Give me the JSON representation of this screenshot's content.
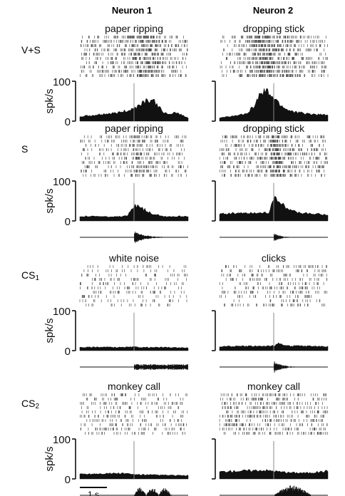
{
  "columns": [
    "Neuron 1",
    "Neuron 2"
  ],
  "conditions": [
    {
      "label": "V+S",
      "label_main": "V+S",
      "label_sub": ""
    },
    {
      "label": "S",
      "label_main": "S",
      "label_sub": ""
    },
    {
      "label": "CS1",
      "label_main": "CS",
      "label_sub": "1"
    },
    {
      "label": "CS2",
      "label_main": "CS",
      "label_sub": "2"
    }
  ],
  "scale_bar_label": "1 s",
  "colors": {
    "ink": "#111111",
    "raster": "#555555",
    "stim_line": "#888888"
  },
  "chart_data": {
    "type": "area",
    "ylabel": "spk/s",
    "ylim": [
      0,
      100
    ],
    "y_ticks": [
      0,
      100
    ],
    "grid": false,
    "time_window_s": [
      -2.3,
      2.3
    ],
    "panels": [
      {
        "condition": "V+S",
        "neuron": "Neuron 1",
        "stimulus": "paper ripping",
        "x": [
          -2.3,
          -1.8,
          -1.3,
          -0.8,
          -0.3,
          0,
          0.3,
          0.6,
          0.9,
          1.2,
          1.5,
          1.8,
          2.3
        ],
        "y": [
          12,
          14,
          18,
          20,
          26,
          32,
          45,
          55,
          48,
          25,
          15,
          22,
          8
        ],
        "sound_waveform": false
      },
      {
        "condition": "V+S",
        "neuron": "Neuron 2",
        "stimulus": "dropping stick",
        "x": [
          -2.3,
          -1.8,
          -1.4,
          -1.1,
          -0.8,
          -0.6,
          -0.4,
          -0.2,
          0,
          0.3,
          0.6,
          1.0,
          1.5,
          2.3
        ],
        "y": [
          8,
          12,
          16,
          22,
          40,
          65,
          75,
          70,
          58,
          40,
          28,
          22,
          18,
          15
        ],
        "sound_waveform": false
      },
      {
        "condition": "S",
        "neuron": "Neuron 1",
        "stimulus": "paper ripping",
        "x": [
          -2.3,
          -1.5,
          -0.8,
          -0.3,
          0,
          0.2,
          0.4,
          0.8,
          1.2,
          1.6,
          2.3
        ],
        "y": [
          12,
          11,
          10,
          12,
          35,
          42,
          30,
          18,
          12,
          11,
          12
        ],
        "sound_waveform": true
      },
      {
        "condition": "S",
        "neuron": "Neuron 2",
        "stimulus": "dropping stick",
        "x": [
          -2.3,
          -1.5,
          -0.8,
          -0.2,
          0,
          0.1,
          0.3,
          0.6,
          1.0,
          1.5,
          2.3
        ],
        "y": [
          18,
          20,
          20,
          22,
          52,
          60,
          45,
          30,
          22,
          18,
          16
        ],
        "sound_waveform": true
      },
      {
        "condition": "CS1",
        "neuron": "Neuron 1",
        "stimulus": "white noise",
        "x": [
          -2.3,
          -1.5,
          -0.5,
          0,
          0.5,
          1.5,
          2.3
        ],
        "y": [
          8,
          9,
          8,
          9,
          8,
          8,
          7
        ],
        "sound_waveform": true
      },
      {
        "condition": "CS1",
        "neuron": "Neuron 2",
        "stimulus": "clicks",
        "x": [
          -2.3,
          -1.5,
          -0.5,
          0,
          0.2,
          0.6,
          1.5,
          2.3
        ],
        "y": [
          10,
          11,
          11,
          12,
          18,
          12,
          11,
          10
        ],
        "sound_waveform": true
      },
      {
        "condition": "CS2",
        "neuron": "Neuron 1",
        "stimulus": "monkey call",
        "x": [
          -2.3,
          -1.5,
          -0.5,
          0,
          0.5,
          1.5,
          2.3
        ],
        "y": [
          12,
          13,
          14,
          11,
          10,
          9,
          8
        ],
        "sound_waveform": true
      },
      {
        "condition": "CS2",
        "neuron": "Neuron 2",
        "stimulus": "monkey call",
        "x": [
          -2.3,
          -1.5,
          -0.5,
          0,
          0.5,
          1.5,
          2.3
        ],
        "y": [
          18,
          20,
          22,
          20,
          16,
          15,
          20
        ],
        "sound_waveform": true
      }
    ]
  }
}
